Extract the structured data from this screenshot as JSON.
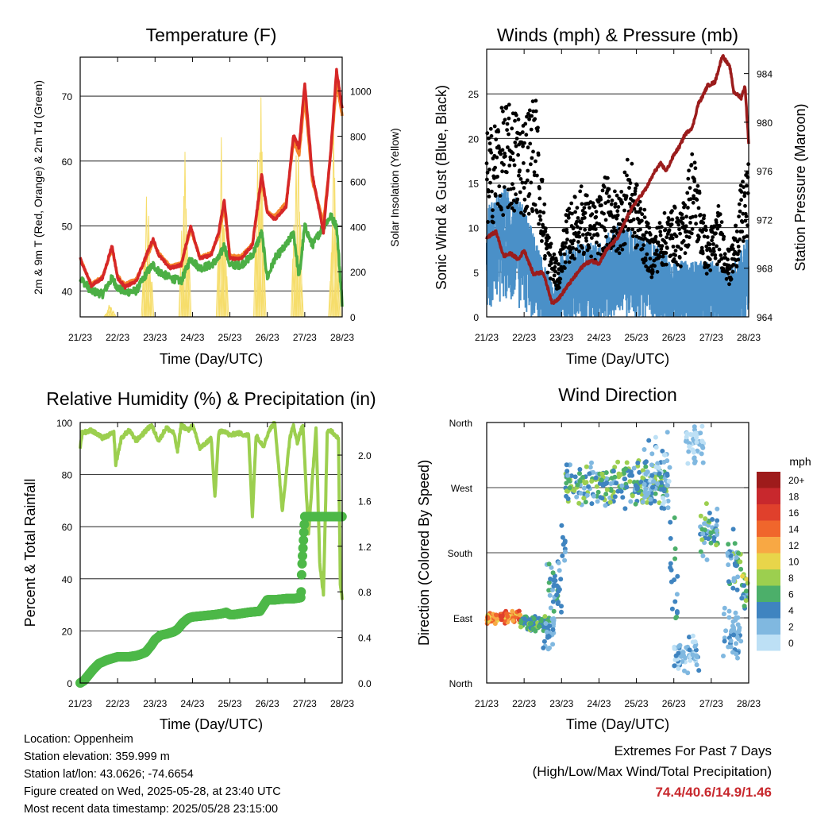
{
  "chart_data": [
    {
      "type": "line",
      "title": "Temperature (F)",
      "xlabel": "Time (Day/UTC)",
      "ylabel": "2m & 9m T (Red, Orange) & 2m Td (Green)",
      "y2label": "Solar Insolation (Yellow)",
      "x_ticks": [
        "21/23",
        "22/23",
        "23/23",
        "24/23",
        "25/23",
        "26/23",
        "27/23",
        "28/23"
      ],
      "ylim": [
        36,
        76
      ],
      "y_ticks": [
        40,
        50,
        60,
        70
      ],
      "y2lim": [
        0,
        1150
      ],
      "y2_ticks": [
        0,
        200,
        400,
        600,
        800,
        1000
      ],
      "colors": {
        "t2m": "#d62728",
        "t9m": "#f5862c",
        "td": "#4caf45",
        "solar": "#f6dd6a"
      },
      "series": [
        {
          "key": "t2m",
          "days": [
            0,
            0.3,
            0.6,
            0.85,
            1.0,
            1.2,
            1.5,
            1.8,
            1.95,
            2.1,
            2.4,
            2.7,
            2.95,
            3.2,
            3.5,
            3.7,
            3.85,
            4.0,
            4.3,
            4.6,
            4.85,
            5.0,
            5.2,
            5.5,
            5.7,
            5.85,
            6.0,
            6.2,
            6.5,
            6.7,
            6.85,
            7.0
          ],
          "values": [
            45,
            40.8,
            42,
            47,
            42,
            40.6,
            41.5,
            46,
            48,
            45.5,
            43.5,
            44,
            50,
            45,
            45.5,
            49,
            54,
            45,
            45,
            47,
            58,
            52,
            51,
            53,
            64,
            62,
            72,
            58,
            49,
            62,
            74,
            68
          ]
        },
        {
          "key": "t9m",
          "days": [
            0,
            0.3,
            0.6,
            0.85,
            1.0,
            1.2,
            1.5,
            1.8,
            1.95,
            2.1,
            2.4,
            2.7,
            2.95,
            3.2,
            3.5,
            3.7,
            3.85,
            4.0,
            4.3,
            4.6,
            4.85,
            5.0,
            5.2,
            5.5,
            5.7,
            5.85,
            6.0,
            6.2,
            6.5,
            6.7,
            6.85,
            7.0
          ],
          "values": [
            45,
            41,
            42.2,
            46.5,
            42.3,
            41,
            41.8,
            45.5,
            47.5,
            45.8,
            43.8,
            44.2,
            49.5,
            45.2,
            45.8,
            48.5,
            53,
            45.4,
            45.3,
            47.2,
            57,
            52.3,
            51.5,
            53.5,
            63,
            61,
            70,
            57,
            50.5,
            61.5,
            72,
            67
          ]
        },
        {
          "key": "td",
          "days": [
            0,
            0.3,
            0.6,
            0.85,
            1.0,
            1.2,
            1.5,
            1.8,
            1.95,
            2.1,
            2.4,
            2.7,
            2.95,
            3.2,
            3.5,
            3.7,
            3.85,
            4.0,
            4.3,
            4.6,
            4.85,
            5.0,
            5.2,
            5.5,
            5.7,
            5.85,
            6.0,
            6.2,
            6.5,
            6.7,
            6.85,
            7.0
          ],
          "values": [
            42,
            40,
            39.5,
            42,
            40.5,
            39.8,
            40,
            43,
            44,
            43,
            42,
            41.5,
            45,
            43.5,
            44,
            45,
            47,
            44,
            44,
            45.5,
            49,
            42,
            45,
            47,
            49,
            42,
            50,
            47,
            50,
            51.5,
            50,
            38
          ]
        },
        {
          "key": "solar",
          "axis": "y2",
          "peaks": [
            0.1,
            0.05,
            0.58,
            0.77,
            0.85,
            1.0,
            0.92,
            0.85,
            0.52
          ],
          "note": "daily insolation peak as fraction of 1150"
        }
      ]
    },
    {
      "type": "line",
      "title": "Winds (mph) & Pressure (mb)",
      "xlabel": "Time (Day/UTC)",
      "ylabel": "Sonic Wind & Gust (Blue, Black)",
      "y2label": "Station Pressure (Maroon)",
      "x_ticks": [
        "21/23",
        "22/23",
        "23/23",
        "24/23",
        "25/23",
        "26/23",
        "27/23",
        "28/23"
      ],
      "ylim": [
        0,
        30
      ],
      "y_ticks": [
        0,
        5,
        10,
        15,
        20,
        25
      ],
      "y2lim": [
        964,
        986
      ],
      "y2_ticks": [
        964,
        968,
        972,
        976,
        980,
        984
      ],
      "colors": {
        "wind": "#4a90c8",
        "gust": "#000000",
        "pressure": "#9b1c1c"
      },
      "series": [
        {
          "key": "wind_envelope",
          "days": [
            0,
            0.5,
            1.0,
            1.5,
            1.8,
            2.0,
            2.5,
            3.0,
            3.5,
            4.0,
            4.5,
            5.0,
            5.5,
            6.0,
            6.5,
            7.0
          ],
          "values": [
            12,
            14,
            12,
            6,
            3,
            7,
            8,
            8,
            10,
            9,
            8,
            6,
            6,
            6,
            5,
            9
          ]
        },
        {
          "key": "gust_envelope",
          "days": [
            0,
            0.5,
            1.0,
            1.3,
            1.6,
            1.9,
            2.1,
            2.5,
            2.9,
            3.2,
            3.5,
            3.8,
            4.1,
            4.4,
            4.7,
            5.0,
            5.2,
            5.5,
            5.9,
            6.0,
            6.2,
            6.5,
            6.8,
            7.0
          ],
          "values": [
            18,
            21,
            20,
            22,
            9,
            5,
            10,
            13,
            11,
            14,
            12,
            16,
            12,
            8,
            10,
            11,
            10,
            17,
            8,
            9,
            11,
            6,
            13,
            15
          ]
        },
        {
          "key": "pressure",
          "axis": "y2",
          "days": [
            0,
            0.25,
            0.45,
            0.65,
            0.85,
            1.0,
            1.25,
            1.5,
            1.65,
            1.75,
            1.95,
            2.15,
            2.4,
            2.6,
            2.8,
            3.0,
            3.2,
            3.5,
            3.8,
            4.0,
            4.25,
            4.5,
            4.65,
            4.8,
            5.0,
            5.15,
            5.3,
            5.5,
            5.65,
            5.75,
            5.9,
            6.1,
            6.3,
            6.5,
            6.6,
            6.8,
            6.9,
            7.0
          ],
          "values": [
            970.5,
            971,
            969,
            969.2,
            968.7,
            969.5,
            967.5,
            967.7,
            966.2,
            965.1,
            965.6,
            966.5,
            967.5,
            968.3,
            968.6,
            968.4,
            969.5,
            970.5,
            972.5,
            973.5,
            974.5,
            976,
            976.6,
            976,
            977.3,
            978,
            979,
            979.6,
            981.5,
            982,
            983,
            983.3,
            985.5,
            984.5,
            982.5,
            982,
            983,
            978.3
          ]
        }
      ]
    },
    {
      "type": "line",
      "title": "Relative Humidity (%) & Precipitation (in)",
      "xlabel": "Time (Day/UTC)",
      "ylabel": "Percent & Total Rainfall",
      "x_ticks": [
        "21/23",
        "22/23",
        "23/23",
        "24/23",
        "25/23",
        "26/23",
        "27/23",
        "28/23"
      ],
      "ylim": [
        0,
        100
      ],
      "y_ticks": [
        0,
        20,
        40,
        60,
        80,
        100
      ],
      "y2lim": [
        0,
        2.286
      ],
      "y2_ticks": [
        "0.0",
        "0.4",
        "0.8",
        "1.2",
        "1.6",
        "2.0"
      ],
      "colors": {
        "rh": "#9ccf4f",
        "precip": "#4db848"
      },
      "series": [
        {
          "key": "rh",
          "days": [
            0,
            0.05,
            0.3,
            0.6,
            0.9,
            0.95,
            1.1,
            1.3,
            1.5,
            1.7,
            1.9,
            2.1,
            2.3,
            2.5,
            2.6,
            2.7,
            2.9,
            3.0,
            3.2,
            3.5,
            3.6,
            3.7,
            3.85,
            4.0,
            4.2,
            4.5,
            4.6,
            4.7,
            4.9,
            5.05,
            5.2,
            5.4,
            5.6,
            5.7,
            5.8,
            5.85,
            5.95,
            6.1,
            6.3,
            6.4,
            6.5,
            6.6,
            6.7,
            6.9,
            6.95,
            7.0
          ],
          "values": [
            90,
            96,
            97,
            94,
            96,
            84,
            94,
            97,
            93,
            96,
            99,
            93,
            98,
            96,
            89,
            99,
            97,
            99,
            90,
            94,
            71,
            96,
            97,
            95,
            96,
            95,
            64,
            95,
            91,
            97,
            100,
            66,
            94,
            99,
            92,
            95,
            99,
            57,
            98,
            46,
            34,
            96,
            97,
            94,
            38,
            32
          ]
        },
        {
          "key": "precip",
          "axis": "y2",
          "days": [
            0,
            0.1,
            0.2,
            0.35,
            0.5,
            0.7,
            0.9,
            1.0,
            1.3,
            1.5,
            1.6,
            1.75,
            1.9,
            2.0,
            2.15,
            2.3,
            2.5,
            2.6,
            2.75,
            2.9,
            3.0,
            3.3,
            3.6,
            3.8,
            3.9,
            4.0,
            4.1,
            4.3,
            4.5,
            4.8,
            5.0,
            5.2,
            5.5,
            5.7,
            5.9,
            5.92,
            6.0,
            6.3,
            6.6,
            7.0
          ],
          "values": [
            0,
            0.02,
            0.06,
            0.12,
            0.17,
            0.2,
            0.22,
            0.23,
            0.23,
            0.24,
            0.25,
            0.27,
            0.33,
            0.38,
            0.42,
            0.43,
            0.45,
            0.47,
            0.53,
            0.57,
            0.58,
            0.59,
            0.6,
            0.61,
            0.62,
            0.6,
            0.6,
            0.61,
            0.62,
            0.63,
            0.73,
            0.73,
            0.74,
            0.74,
            0.75,
            1.0,
            1.46,
            1.46,
            1.46,
            1.46
          ]
        }
      ]
    },
    {
      "type": "scatter",
      "title": "Wind Direction",
      "xlabel": "Time (Day/UTC)",
      "ylabel": "Direction (Colored By Speed)",
      "x_ticks": [
        "21/23",
        "22/23",
        "23/23",
        "24/23",
        "25/23",
        "26/23",
        "27/23",
        "28/23"
      ],
      "y_ticks": [
        "North",
        "East",
        "South",
        "West",
        "North"
      ],
      "ylim": [
        0,
        360
      ],
      "legend": {
        "title": "mph",
        "levels": [
          "20+",
          "18",
          "16",
          "14",
          "12",
          "10",
          "8",
          "6",
          "4",
          "2",
          "0"
        ],
        "colors": [
          "#9e1b1b",
          "#c8282d",
          "#e0402c",
          "#f0662c",
          "#f8a844",
          "#e8d54a",
          "#9ccf4f",
          "#4caf6a",
          "#3f84c0",
          "#80b8e0",
          "#bde0f5"
        ]
      },
      "clusters": [
        {
          "days": [
            0,
            0.9
          ],
          "dir": [
            80,
            100
          ],
          "speed": [
            10,
            16
          ]
        },
        {
          "days": [
            0.9,
            1.7
          ],
          "dir": [
            70,
            95
          ],
          "speed": [
            3,
            8
          ]
        },
        {
          "days": [
            1.5,
            1.8
          ],
          "dir": [
            30,
            110
          ],
          "speed": [
            1,
            4
          ]
        },
        {
          "days": [
            1.6,
            2.0
          ],
          "dir": [
            90,
            180
          ],
          "speed": [
            2,
            6
          ]
        },
        {
          "days": [
            2.0,
            2.1
          ],
          "dir": [
            150,
            250
          ],
          "speed": [
            2,
            5
          ]
        },
        {
          "days": [
            2.1,
            4.8
          ],
          "dir": [
            240,
            310
          ],
          "speed": [
            2,
            9
          ]
        },
        {
          "days": [
            4.2,
            4.9
          ],
          "dir": [
            220,
            360
          ],
          "speed": [
            0,
            4
          ]
        },
        {
          "days": [
            4.9,
            5.1
          ],
          "dir": [
            60,
            240
          ],
          "speed": [
            2,
            6
          ]
        },
        {
          "days": [
            5.0,
            5.7
          ],
          "dir": [
            10,
            70
          ],
          "speed": [
            0,
            4
          ]
        },
        {
          "days": [
            5.3,
            5.8
          ],
          "dir": [
            300,
            360
          ],
          "speed": [
            0,
            2
          ]
        },
        {
          "days": [
            5.7,
            6.2
          ],
          "dir": [
            160,
            250
          ],
          "speed": [
            1,
            8
          ]
        },
        {
          "days": [
            6.3,
            6.8
          ],
          "dir": [
            30,
            110
          ],
          "speed": [
            1,
            4
          ]
        },
        {
          "days": [
            6.4,
            6.8
          ],
          "dir": [
            120,
            220
          ],
          "speed": [
            1,
            8
          ]
        },
        {
          "days": [
            6.8,
            7.0
          ],
          "dir": [
            100,
            160
          ],
          "speed": [
            2,
            10
          ]
        }
      ]
    }
  ],
  "info": {
    "location": "Location: Oppenheim",
    "elevation": "Station elevation: 359.999 m",
    "latlon": "Station lat/lon: 43.0626; -74.6654",
    "created": "Figure created on Wed, 2025-05-28, at 23:40 UTC",
    "timestamp": "Most recent data timestamp: 2025/05/28 23:15:00"
  },
  "extremes": {
    "title": "Extremes For Past 7 Days",
    "subtitle": "(High/Low/Max Wind/Total Precipitation)",
    "values": "74.4/40.6/14.9/1.46"
  }
}
